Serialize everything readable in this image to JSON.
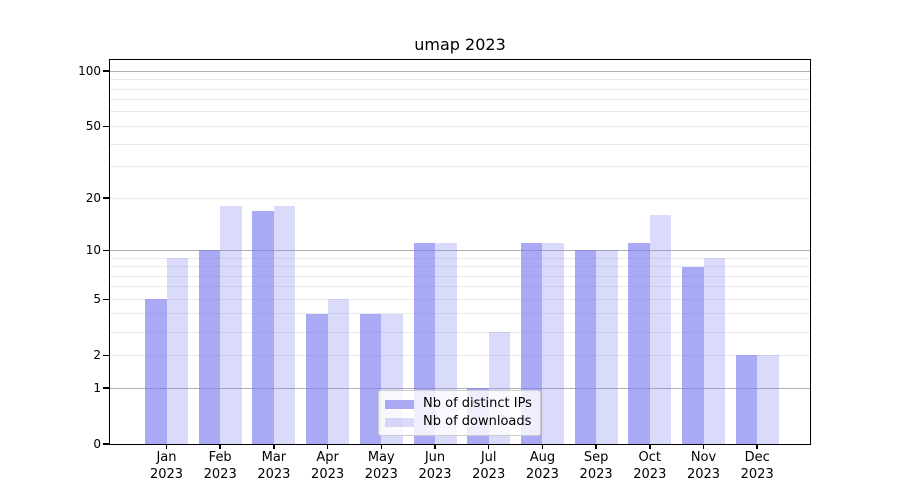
{
  "title": "umap 2023",
  "colors": {
    "bar_base": "#7e7eef",
    "ips_fill": "rgba(126,126,239,0.66)",
    "downloads_fill": "rgba(126,126,239,0.29)",
    "grid_major": "#b0b0b0",
    "grid_minor": "#eaeaea",
    "spine": "#000000",
    "legend_border": "#cccccc"
  },
  "legend": {
    "items": [
      {
        "label": "Nb of distinct IPs",
        "series": "ips"
      },
      {
        "label": "Nb of downloads",
        "series": "downloads"
      }
    ]
  },
  "chart_data": {
    "type": "bar",
    "title": "umap 2023",
    "categories": [
      "Jan 2023",
      "Feb 2023",
      "Mar 2023",
      "Apr 2023",
      "May 2023",
      "Jun 2023",
      "Jul 2023",
      "Aug 2023",
      "Sep 2023",
      "Oct 2023",
      "Nov 2023",
      "Dec 2023"
    ],
    "series": [
      {
        "name": "Nb of distinct IPs",
        "key": "ips",
        "values": [
          5,
          10,
          17,
          4,
          4,
          11,
          1,
          11,
          10,
          11,
          8,
          2
        ]
      },
      {
        "name": "Nb of downloads",
        "key": "downloads",
        "values": [
          9,
          18,
          18,
          5,
          4,
          11,
          3,
          11,
          10,
          16,
          9,
          2
        ]
      }
    ],
    "xlabel": "",
    "ylabel": "",
    "yscale": "log1p",
    "ylim": [
      0,
      115
    ],
    "yticks": [
      0,
      1,
      2,
      5,
      10,
      20,
      50,
      100
    ],
    "major_gridlines": [
      1,
      10,
      100
    ],
    "minor_gridlines": [
      2,
      3,
      4,
      5,
      6,
      7,
      8,
      9,
      20,
      30,
      40,
      50,
      60,
      70,
      80,
      90
    ],
    "grid": true,
    "legend_position": "lower center"
  }
}
